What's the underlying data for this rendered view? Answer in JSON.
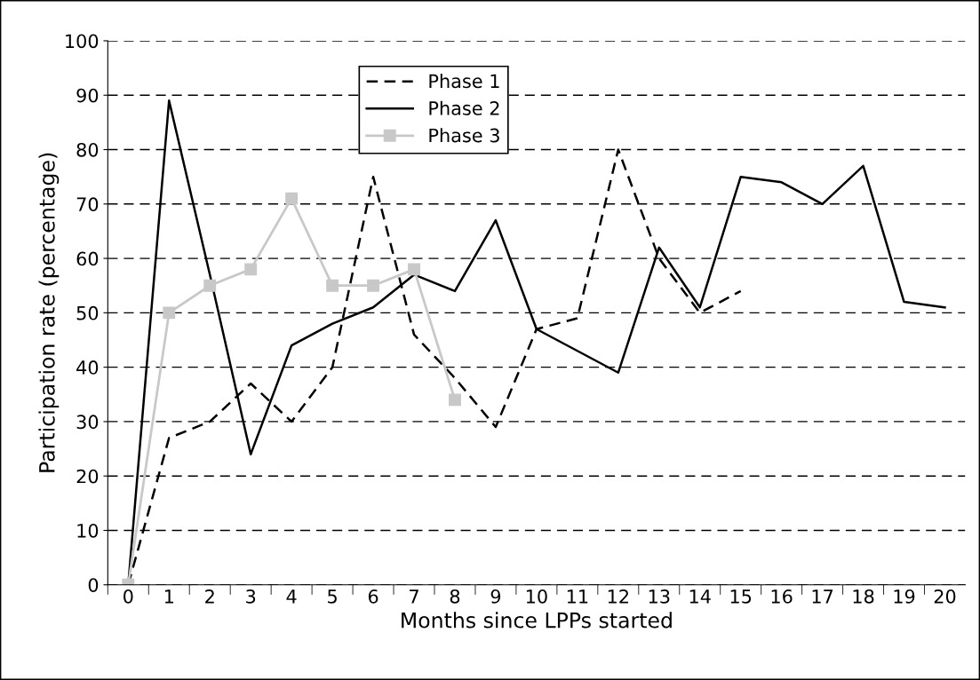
{
  "chart_data": {
    "type": "line",
    "xlabel": "Months since LPPs started",
    "ylabel": "Participation rate (percentage)",
    "categories": [
      "0",
      "1",
      "2",
      "3",
      "4",
      "5",
      "6",
      "7",
      "8",
      "9",
      "10",
      "11",
      "12",
      "13",
      "14",
      "15",
      "16",
      "17",
      "18",
      "19",
      "20"
    ],
    "series": [
      {
        "name": "Phase 1",
        "color": "#000000",
        "line_style": "dashed",
        "marker": "none",
        "values": [
          0,
          27,
          30,
          37,
          30,
          40,
          75,
          46,
          38,
          29,
          47,
          49,
          80,
          60,
          50,
          54,
          null,
          null,
          null,
          null,
          null
        ]
      },
      {
        "name": "Phase 2",
        "color": "#000000",
        "line_style": "solid",
        "marker": "none",
        "values": [
          0,
          89,
          57,
          24,
          44,
          48,
          51,
          57,
          54,
          67,
          47,
          43,
          39,
          62,
          51,
          75,
          74,
          70,
          77,
          52,
          51
        ]
      },
      {
        "name": "Phase 3",
        "color": "#c8c8c8",
        "line_style": "solid",
        "marker": "square",
        "values": [
          0,
          50,
          55,
          58,
          71,
          55,
          55,
          58,
          34,
          null,
          null,
          null,
          null,
          null,
          null,
          null,
          null,
          null,
          null,
          null,
          null
        ]
      }
    ],
    "ylim": [
      0,
      100
    ],
    "yticks": [
      0,
      10,
      20,
      30,
      40,
      50,
      60,
      70,
      80,
      90,
      100
    ],
    "grid": "y",
    "legend": "top"
  }
}
